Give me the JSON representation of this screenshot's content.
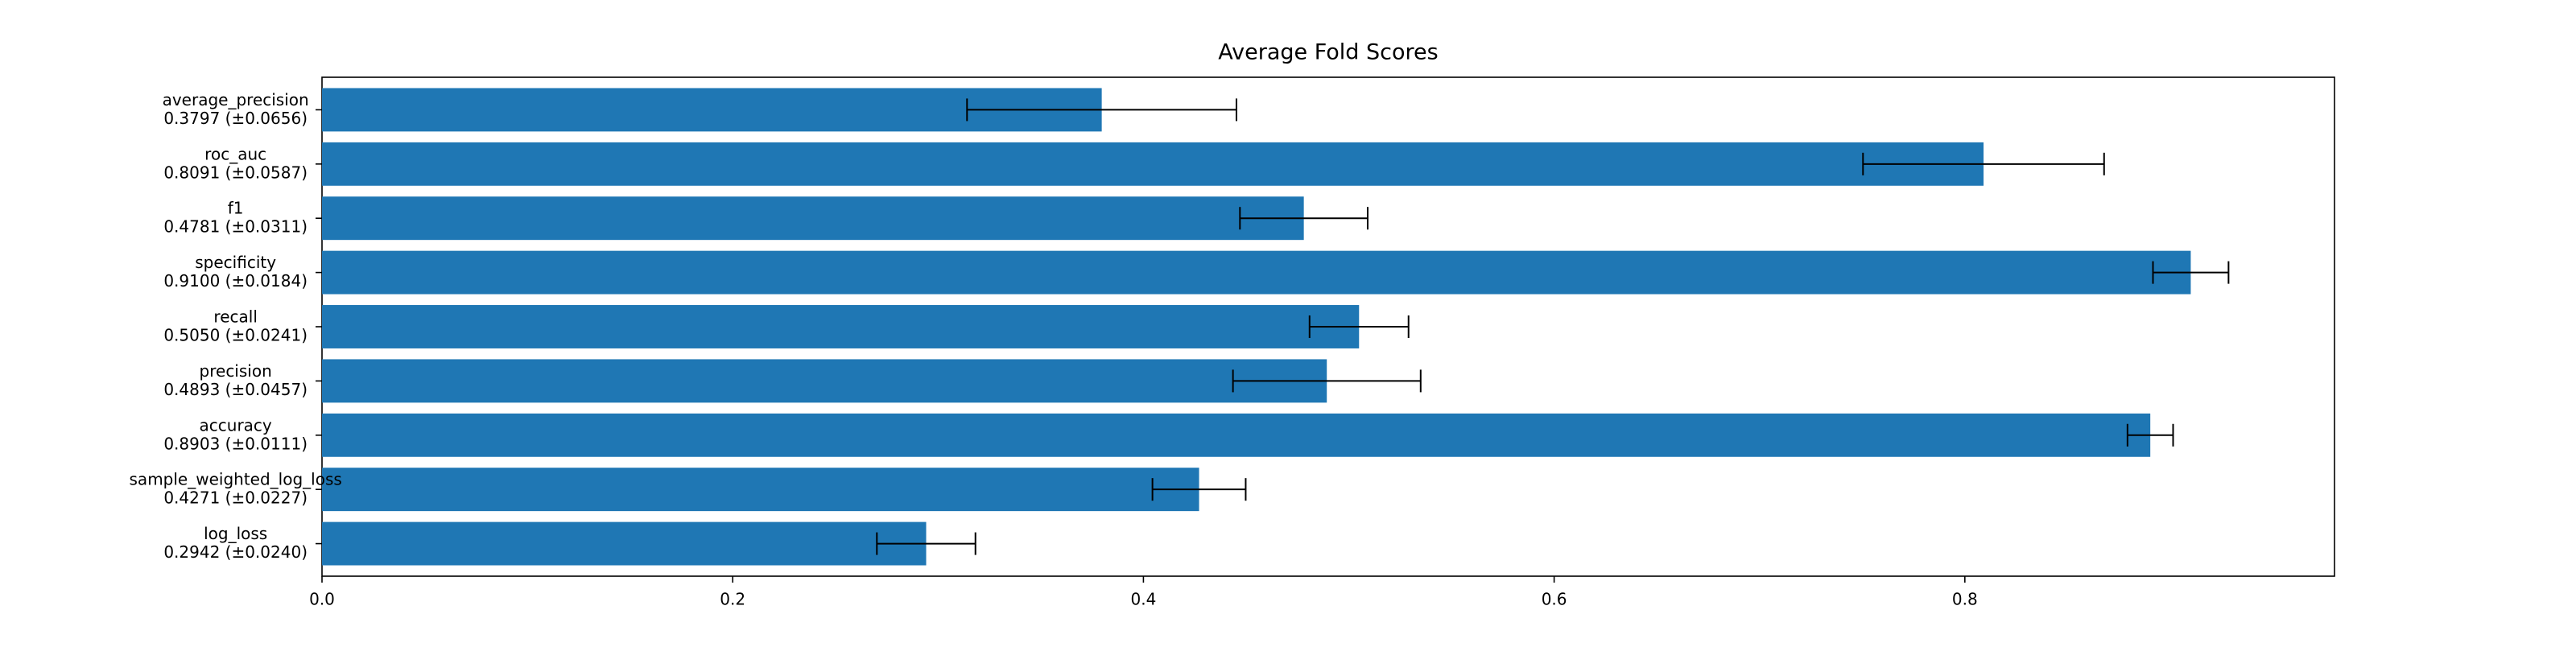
{
  "chart_data": {
    "type": "bar",
    "orientation": "horizontal",
    "title": "Average Fold Scores",
    "xlabel": "",
    "ylabel": "",
    "xlim": [
      0,
      0.98
    ],
    "x_ticks": [
      0.0,
      0.2,
      0.4,
      0.6,
      0.8
    ],
    "x_tick_labels": [
      "0.0",
      "0.2",
      "0.4",
      "0.6",
      "0.8"
    ],
    "grid": false,
    "bar_color": "#1f77b4",
    "error_bar_color": "#000000",
    "bars": [
      {
        "metric": "average_precision",
        "value": 0.3797,
        "error": 0.0656,
        "label": "0.3797 (±0.0656)"
      },
      {
        "metric": "roc_auc",
        "value": 0.8091,
        "error": 0.0587,
        "label": "0.8091 (±0.0587)"
      },
      {
        "metric": "f1",
        "value": 0.4781,
        "error": 0.0311,
        "label": "0.4781 (±0.0311)"
      },
      {
        "metric": "specificity",
        "value": 0.91,
        "error": 0.0184,
        "label": "0.9100 (±0.0184)"
      },
      {
        "metric": "recall",
        "value": 0.505,
        "error": 0.0241,
        "label": "0.5050 (±0.0241)"
      },
      {
        "metric": "precision",
        "value": 0.4893,
        "error": 0.0457,
        "label": "0.4893 (±0.0457)"
      },
      {
        "metric": "accuracy",
        "value": 0.8903,
        "error": 0.0111,
        "label": "0.8903 (±0.0111)"
      },
      {
        "metric": "sample_weighted_log_loss",
        "value": 0.4271,
        "error": 0.0227,
        "label": "0.4271 (±0.0227)"
      },
      {
        "metric": "log_loss",
        "value": 0.2942,
        "error": 0.024,
        "label": "0.2942 (±0.0240)"
      }
    ]
  }
}
